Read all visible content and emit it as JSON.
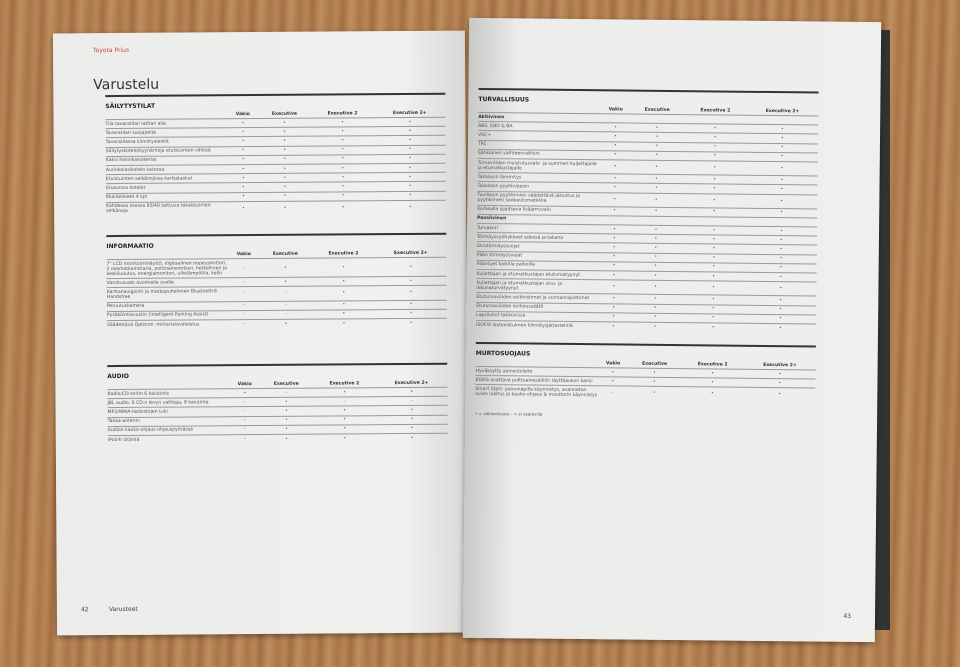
{
  "left_page": {
    "brand": "Toyota Prius",
    "title": "Varustelu",
    "page_number": "42",
    "footer_label": "Varusteet"
  },
  "right_page": {
    "page_number": "43",
    "footnote": "• = vakiovaruste   – = ei saatavilla"
  },
  "columns": [
    "Vakio",
    "Executive",
    "Executive 2",
    "Executive 2+"
  ],
  "sections": [
    {
      "id": "sailytystilat",
      "page": "left",
      "title": "SÄILYTYSTILAT",
      "rows": [
        [
          "Tila tavaratilan lattian alla",
          "•",
          "•",
          "•",
          "•"
        ],
        [
          "Tavaratilan suojapeite",
          "•",
          "•",
          "•",
          "•"
        ],
        [
          "Tavaratilassa kiinnityslenkit",
          "•",
          "•",
          "•",
          "•"
        ],
        [
          "Säilytyskotelo/kyynärnoja etuistuinten välissä",
          "•",
          "•",
          "•",
          "•"
        ],
        [
          "Kaksi hansikaslokeroa",
          "•",
          "•",
          "•",
          "•"
        ],
        [
          "Aurinkolasikotelo katossa",
          "•",
          "•",
          "•",
          "•"
        ],
        [
          "Etuistuinten selkänojissa karttataskut",
          "•",
          "•",
          "•",
          "•"
        ],
        [
          "Etuovissa kotelot",
          "•",
          "•",
          "•",
          "•"
        ],
        [
          "Mukitelineet 4 kpl",
          "•",
          "•",
          "•",
          "•"
        ],
        [
          "Kahdessa osassa 60/40 taittuva takaistuimen selkänoja",
          "•",
          "•",
          "•",
          "•"
        ]
      ]
    },
    {
      "id": "informaatio",
      "page": "left",
      "title": "INFORMAATIO",
      "rows": [
        [
          "7\" LCD monitoiminäyttö, digitaalinen nopeusmittari, 2 osamatkamittaria, polttoainemittari, hetkellinen ja keskikulutus, energiamonitori, ulkolämpötila, kello",
          "–",
          "•",
          "•",
          "•"
        ],
        [
          "Varoitusvalo avoimelle ovelle",
          "–",
          "•",
          "•",
          "•"
        ],
        [
          "Karttanavigointi ja matkapuhelimen Bluetooth® Handsfree",
          "–",
          "–",
          "•",
          "•"
        ],
        [
          "Peruutuskamera",
          "–",
          "–",
          "•",
          "•"
        ],
        [
          "Pysäköintiavustin (Intelligent Parking Assist)",
          "–",
          "–",
          "•",
          "•"
        ],
        [
          "Säädettävä Optitron -mittaristovalaistus",
          "–",
          "•",
          "•",
          "•"
        ]
      ]
    },
    {
      "id": "audio",
      "page": "left",
      "title": "AUDIO",
      "rows": [
        [
          "Radio/CD-soitin 6 kaiutinta",
          "•",
          "–",
          "•",
          "•"
        ],
        [
          "JBL audio, 6 CD:n levyn vaihtaja, 8 kaiutinta",
          "–",
          "•",
          "–",
          "–"
        ],
        [
          "MP3/WMA-tiedostojen tuki",
          "–",
          "•",
          "•",
          "•"
        ],
        [
          "Takaa-antenni",
          "–",
          "•",
          "•",
          "•"
        ],
        [
          "Audion kauko-ohjaus ohjauspyörässä",
          "–",
          "•",
          "•",
          "•"
        ],
        [
          "iPod® liitäntä",
          "–",
          "•",
          "•",
          "•"
        ]
      ]
    },
    {
      "id": "turvallisuus",
      "page": "right",
      "title": "TURVALLISUUS",
      "rows": [
        [
          "Aktiivinen",
          "",
          "",
          "",
          ""
        ],
        [
          "ABS, EBD & BA",
          "•",
          "•",
          "•",
          "•"
        ],
        [
          "VSC+",
          "•",
          "•",
          "•",
          "•"
        ],
        [
          "TRC",
          "•",
          "•",
          "•",
          "•"
        ],
        [
          "Sähköinen vaihteenvalitsin",
          "•",
          "•",
          "•",
          "•"
        ],
        [
          "Turvavöiden muistutusvalo- ja summeri kuljettajalle ja etumatkustajalle",
          "•",
          "•",
          "•",
          "•"
        ],
        [
          "Takalasin lämmitys",
          "•",
          "•",
          "•",
          "•"
        ],
        [
          "Takalasin pyyhin/pesin",
          "•",
          "•",
          "•",
          "•"
        ],
        [
          "Tuulilasin pyyhkimien säädettävä jaksotus ja pyyhkimien sadeautomatiikka",
          "•",
          "•",
          "•",
          "•"
        ],
        [
          "Korkealla sijaitseva lisäjarruvalo",
          "•",
          "•",
          "•",
          "•"
        ],
        [
          "Passiivinen",
          "",
          "",
          "",
          ""
        ],
        [
          "Turvakori",
          "•",
          "•",
          "•",
          "•"
        ],
        [
          "Törmäysvyöhykkeet edessä ja takana",
          "•",
          "•",
          "•",
          "•"
        ],
        [
          "Sivutörmäyssuojat",
          "•",
          "•",
          "•",
          "•"
        ],
        [
          "Pään törmäyssuojat",
          "•",
          "•",
          "•",
          "•"
        ],
        [
          "Pääntuet kaikilla paikoilla",
          "•",
          "•",
          "•",
          "•"
        ],
        [
          "Kuljettajan ja etumatkustajan etuturvatyynyt",
          "•",
          "•",
          "•",
          "•"
        ],
        [
          "Kuljettajan ja etumatkustajan sivu- ja ikkunaturvatyynyt",
          "•",
          "•",
          "•",
          "•"
        ],
        [
          "Etuturvavöiden esikiristimet ja voimanrajoittimet",
          "•",
          "•",
          "•",
          "•"
        ],
        [
          "Etuturvavöiden korkeussäätö",
          "•",
          "•",
          "•",
          "•"
        ],
        [
          "Lapsilukot takaovissa",
          "•",
          "•",
          "•",
          "•"
        ],
        [
          "ISOFIX-lastenistuimen kiinnitysjärjestelmä",
          "•",
          "•",
          "•",
          "•"
        ]
      ]
    },
    {
      "id": "murtosuojaus",
      "page": "right",
      "title": "MURTOSUOJAUS",
      "rows": [
        [
          "Hyväksytty ajonestolaite",
          "•",
          "•",
          "•",
          "•"
        ],
        [
          "Etältä avattava polttoainesäiliön täyttöaukon kansi",
          "•",
          "•",
          "•",
          "•"
        ],
        [
          "Smart Start: painonapilla käynnistys, avaimeton ovien lukitus ja kauko-ohjaus & moottorin käynnistys",
          "–",
          "•",
          "•",
          "•"
        ]
      ]
    }
  ]
}
